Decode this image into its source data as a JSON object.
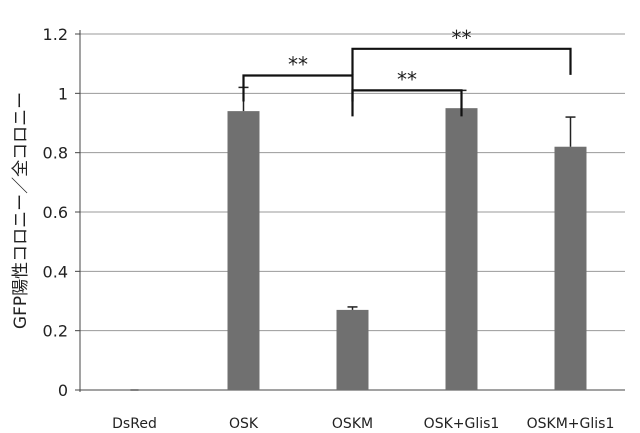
{
  "chart_data": {
    "type": "bar",
    "title": "",
    "xlabel": "",
    "ylabel": "GFP陽性コロニー／全コロニー",
    "categories": [
      "DsRed",
      "OSK",
      "OSKM",
      "OSK+Glis1",
      "OSKM+Glis1"
    ],
    "values": [
      0.0,
      0.94,
      0.27,
      0.95,
      0.82
    ],
    "errors": [
      0.0,
      0.08,
      0.01,
      0.06,
      0.1
    ],
    "ylim": [
      0,
      1.2
    ],
    "yticks": [
      "0",
      "0.2",
      "0.4",
      "0.6",
      "0.8",
      "1",
      "1.2"
    ],
    "grid": true,
    "legend": "none",
    "bar_color": "#707070",
    "significance": [
      {
        "from": "OSK",
        "to": "OSKM",
        "label": "**",
        "y": 1.06
      },
      {
        "from": "OSKM",
        "to": "OSK+Glis1",
        "label": "**",
        "y": 1.01
      },
      {
        "from": "OSKM",
        "to": "OSKM+Glis1",
        "label": "**",
        "y": 1.15
      }
    ]
  }
}
